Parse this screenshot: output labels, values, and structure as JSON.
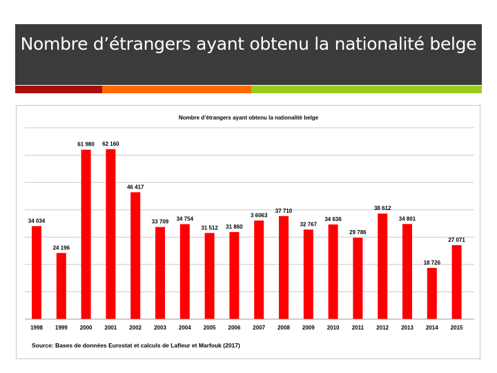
{
  "slide": {
    "title": "Nombre d’étrangers ayant obtenu la nationalité belge"
  },
  "colors": {
    "title_band": "#3b3b3b",
    "stripes": [
      "#a50f0f",
      "#ff6a00",
      "#9acd1d"
    ],
    "bar": "#ff0000",
    "grid": "#c8c8c8"
  },
  "chart_data": {
    "type": "bar",
    "title": "Nombre d’étrangers ayant obtenu la nationalité belge",
    "xlabel": "",
    "ylabel": "",
    "ylim": [
      0,
      70000
    ],
    "grid": true,
    "categories": [
      "1998",
      "1999",
      "2000",
      "2001",
      "2002",
      "2003",
      "2004",
      "2005",
      "2006",
      "2007",
      "2008",
      "2009",
      "2010",
      "2011",
      "2012",
      "2013",
      "2014",
      "2015"
    ],
    "values": [
      34034,
      24196,
      61980,
      62160,
      46417,
      33709,
      34754,
      31512,
      31860,
      36063,
      37710,
      32767,
      34636,
      29786,
      38612,
      34801,
      18726,
      27071
    ],
    "value_labels": [
      "34 034",
      "24 196",
      "61 980",
      "62 160",
      "46 417",
      "33 709",
      "34 754",
      "31 512",
      "31 860",
      "3 6063",
      "37 710",
      "32 767",
      "34 636",
      "29 786",
      "38 612",
      "34 801",
      "18 726",
      "27 071"
    ],
    "source": "Source: Bases de données Eurostat et calculs de Lafleur et Marfouk (2017)"
  }
}
